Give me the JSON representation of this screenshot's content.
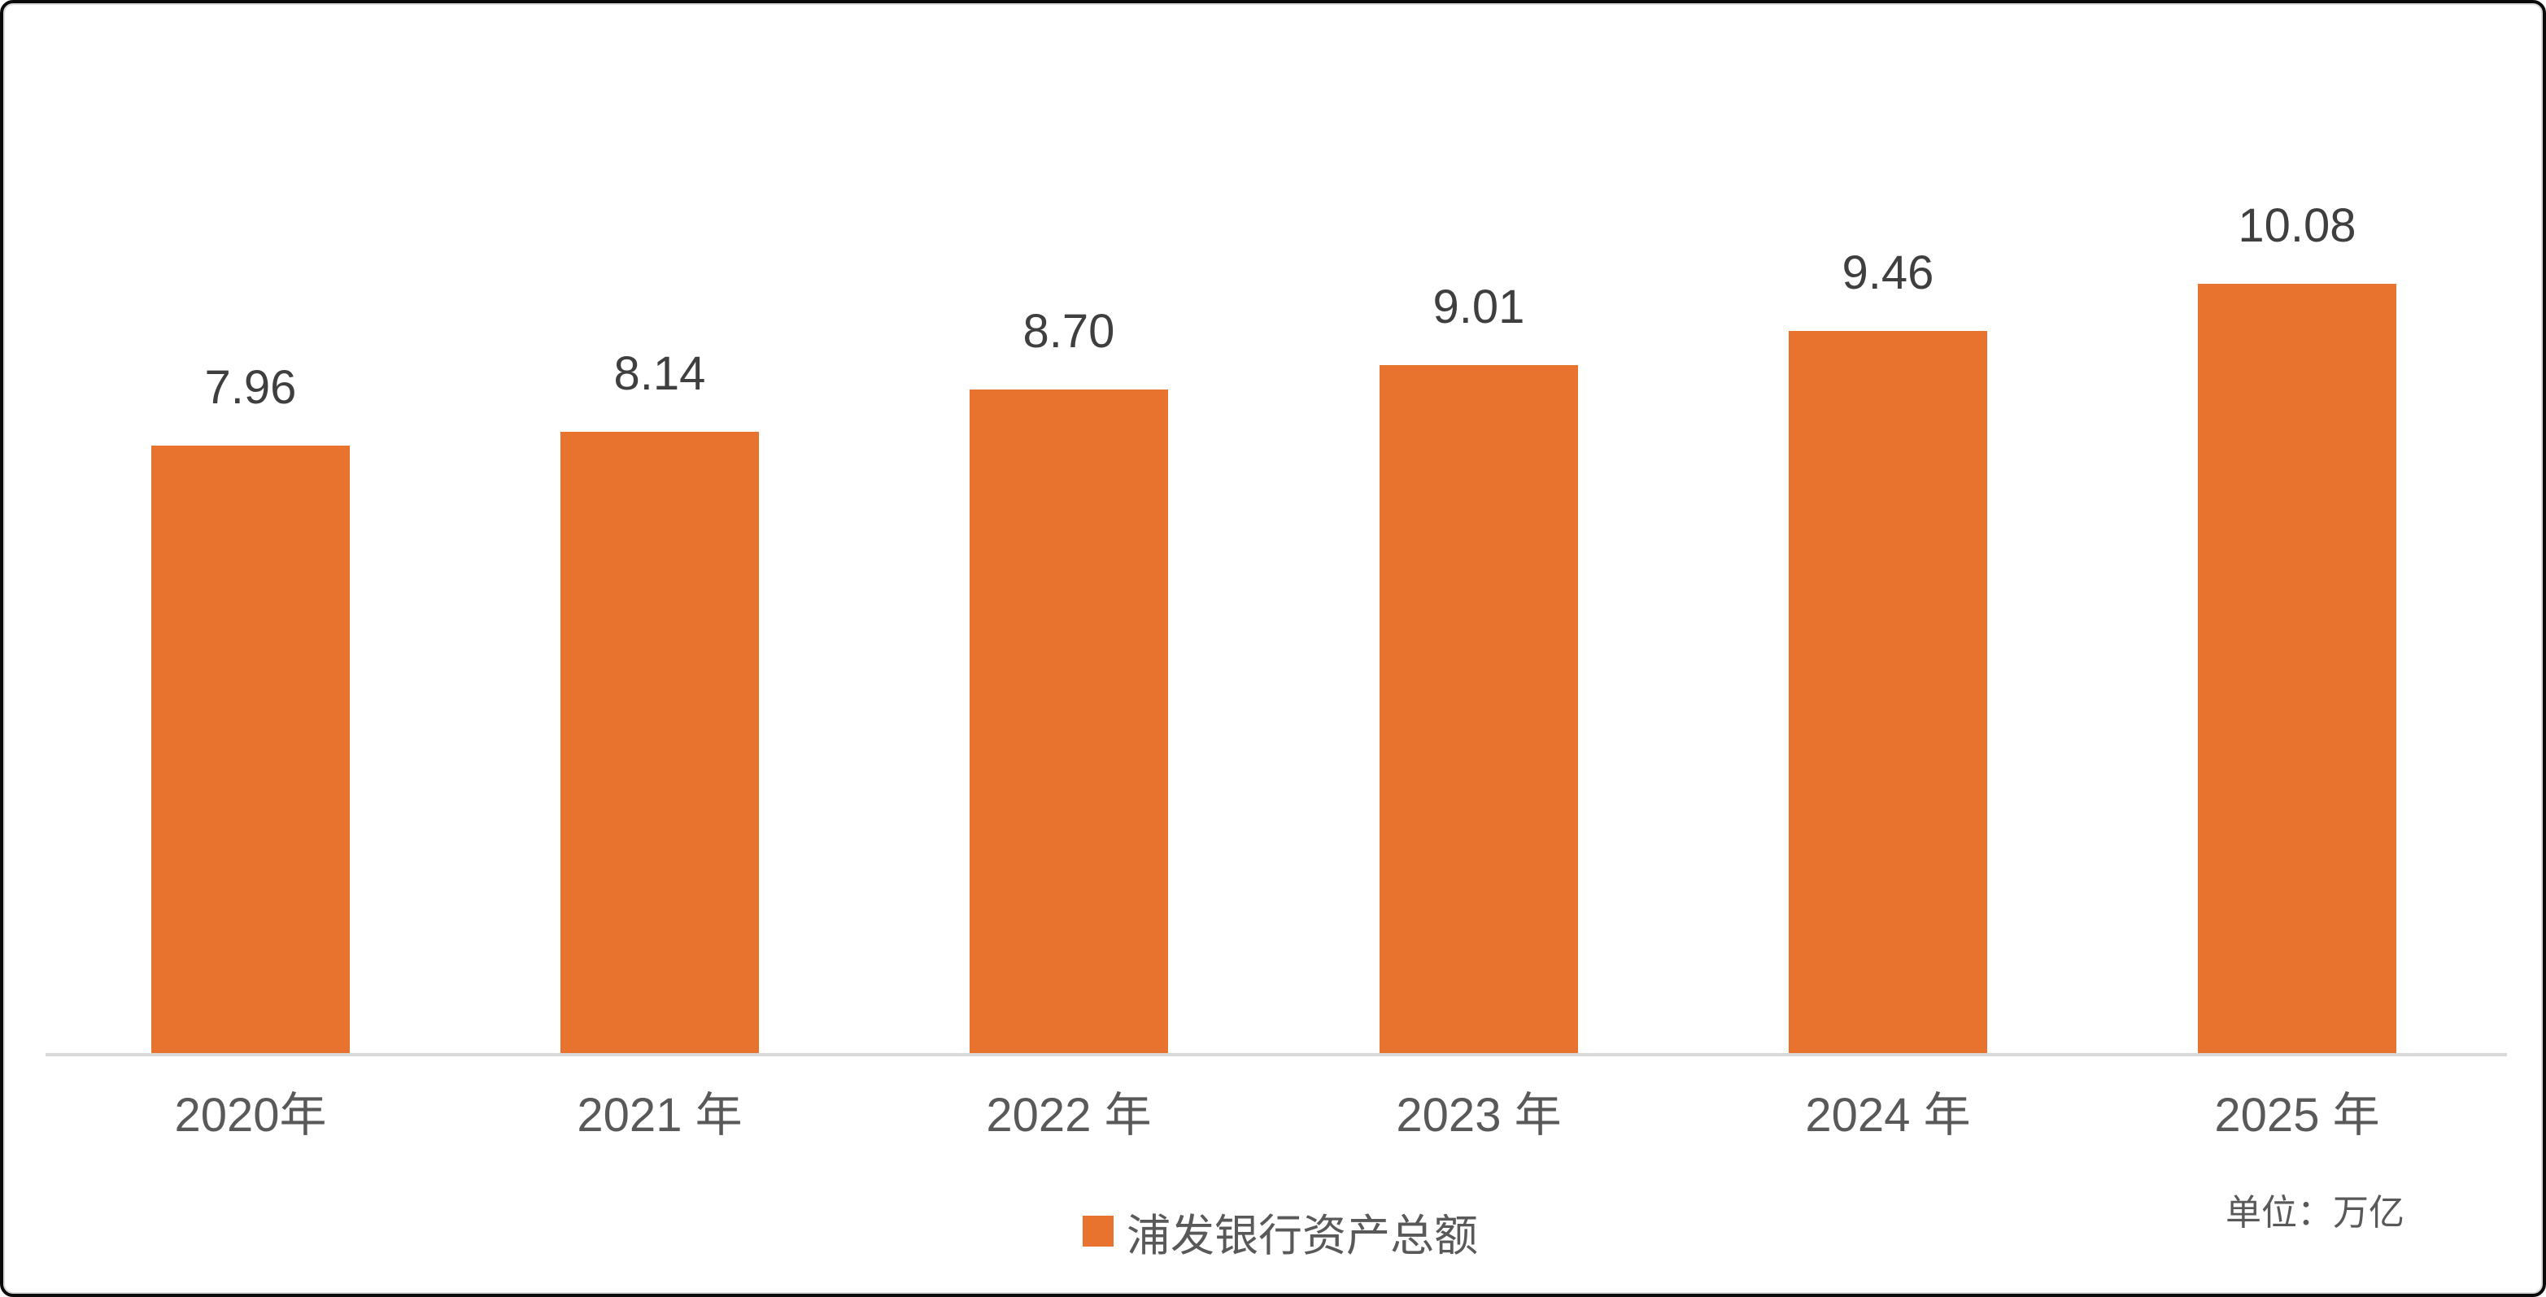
{
  "chart_data": {
    "type": "bar",
    "title": "",
    "categories": [
      "2020年",
      "2021 年",
      "2022 年",
      "2023 年",
      "2024 年",
      "2025 年"
    ],
    "values": [
      7.96,
      8.14,
      8.7,
      9.01,
      9.46,
      10.08
    ],
    "value_labels": [
      "7.96",
      "8.14",
      "8.70",
      "9.01",
      "9.46",
      "10.08"
    ],
    "series": [
      {
        "name": "浦发银行资产总额",
        "values": [
          7.96,
          8.14,
          8.7,
          9.01,
          9.46,
          10.08
        ]
      }
    ],
    "xlabel": "",
    "ylabel": "",
    "unit": "万亿",
    "gridlines": false,
    "y_axis_visible": false,
    "baseline_value": 0,
    "legend_position": "bottom-center",
    "bar_color": "#e8732f",
    "value_label_color": "#3f3f3f",
    "category_label_color": "#595959",
    "axis_line_color": "#d9d9d9"
  },
  "legend": {
    "label": "浦发银行资产总额",
    "marker_color": "#e8732f"
  },
  "footer": {
    "unit_label": "单位：万亿"
  }
}
